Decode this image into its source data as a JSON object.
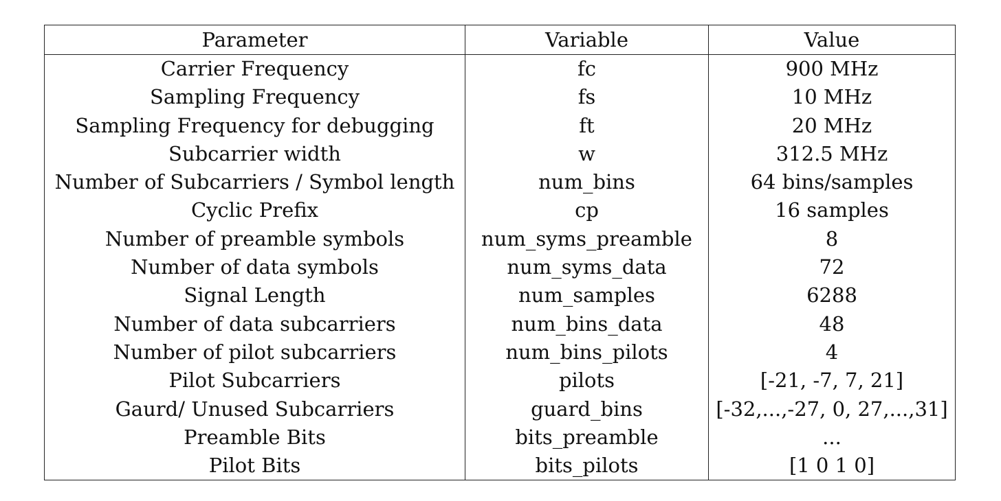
{
  "table": {
    "headers": [
      "Parameter",
      "Variable",
      "Value"
    ],
    "rows": [
      [
        "Carrier Frequency",
        "fc",
        "900 MHz"
      ],
      [
        "Sampling Frequency",
        "fs",
        "10 MHz"
      ],
      [
        "Sampling Frequency for debugging",
        "ft",
        "20 MHz"
      ],
      [
        "Subcarrier width",
        "w",
        "312.5 MHz"
      ],
      [
        "Number of Subcarriers / Symbol length",
        "num_bins",
        "64 bins/samples"
      ],
      [
        "Cyclic Prefix",
        "cp",
        "16 samples"
      ],
      [
        "Number of preamble symbols",
        "num_syms_preamble",
        "8"
      ],
      [
        "Number of data symbols",
        "num_syms_data",
        "72"
      ],
      [
        "Signal Length",
        "num_samples",
        "6288"
      ],
      [
        "Number of data subcarriers",
        "num_bins_data",
        "48"
      ],
      [
        "Number of pilot subcarriers",
        "num_bins_pilots",
        "4"
      ],
      [
        "Pilot Subcarriers",
        "pilots",
        "[-21, -7, 7, 21]"
      ],
      [
        "Gaurd/ Unused Subcarriers",
        "guard_bins",
        "[-32,...,-27, 0, 27,...,31]"
      ],
      [
        "Preamble Bits",
        "bits_preamble",
        "..."
      ],
      [
        "Pilot Bits",
        "bits_pilots",
        "[1 0 1 0]"
      ]
    ]
  }
}
